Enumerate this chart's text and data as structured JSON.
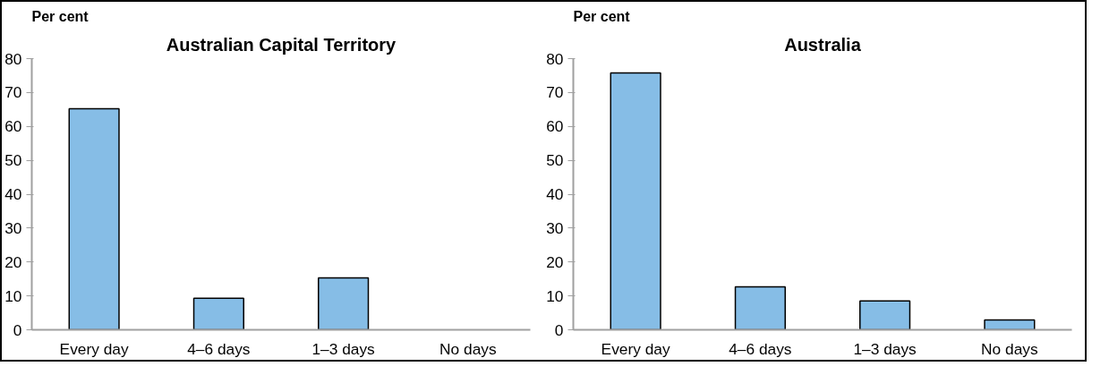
{
  "chart_data": [
    {
      "type": "bar",
      "title": "Australian Capital Territory",
      "ylabel": "Per cent",
      "categories": [
        "Every day",
        "4–6 days",
        "1–3 days",
        "No days"
      ],
      "values": [
        65.2,
        9.3,
        15.3,
        null
      ],
      "color": "#86bde6",
      "ylim": [
        0,
        80
      ],
      "yticks": [
        0,
        10,
        20,
        30,
        40,
        50,
        60,
        70,
        80
      ],
      "grid": false
    },
    {
      "type": "bar",
      "title": "Australia",
      "ylabel": "Per cent",
      "categories": [
        "Every day",
        "4–6 days",
        "1–3 days",
        "No days"
      ],
      "values": [
        75.8,
        12.7,
        8.5,
        2.9
      ],
      "color": "#86bde6",
      "ylim": [
        0,
        80
      ],
      "yticks": [
        0,
        10,
        20,
        30,
        40,
        50,
        60,
        70,
        80
      ],
      "grid": false
    }
  ]
}
